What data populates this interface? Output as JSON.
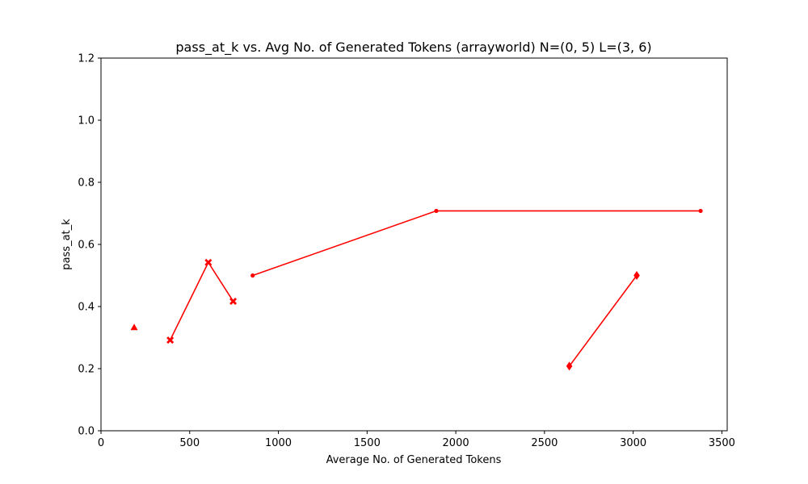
{
  "chart_data": {
    "type": "line",
    "title": "pass_at_k vs. Avg No. of Generated Tokens (arrayworld) N=(0, 5) L=(3, 6)",
    "xlabel": "Average No. of Generated Tokens",
    "ylabel": "pass_at_k",
    "xlim": [
      0,
      3530
    ],
    "ylim": [
      0,
      1.2
    ],
    "xticks": [
      0,
      500,
      1000,
      1500,
      2000,
      2500,
      3000,
      3500
    ],
    "yticks": [
      0.0,
      0.2,
      0.4,
      0.6,
      0.8,
      1.0,
      1.2
    ],
    "xtick_labels": [
      "0",
      "500",
      "1000",
      "1500",
      "2000",
      "2500",
      "3000",
      "3500"
    ],
    "ytick_labels": [
      "0.0",
      "0.2",
      "0.4",
      "0.6",
      "0.8",
      "1.0",
      "1.2"
    ],
    "grid": false,
    "color": "#ff0000",
    "series": [
      {
        "marker": "triangle",
        "x": [
          187
        ],
        "y": [
          0.333
        ]
      },
      {
        "marker": "x",
        "x": [
          390,
          605,
          745
        ],
        "y": [
          0.292,
          0.542,
          0.417
        ]
      },
      {
        "marker": "dot",
        "x": [
          855,
          1890,
          3380
        ],
        "y": [
          0.5,
          0.708,
          0.708
        ]
      },
      {
        "marker": "diamond",
        "x": [
          2640,
          3020
        ],
        "y": [
          0.208,
          0.5
        ]
      }
    ]
  }
}
